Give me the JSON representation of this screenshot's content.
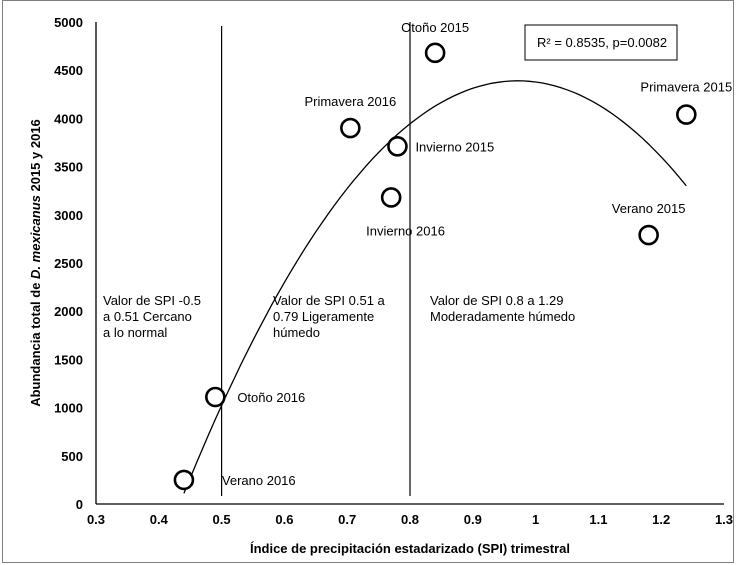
{
  "chart_data": {
    "type": "scatter",
    "xlabel": "Índice de precipitación estadarizado (SPI) trimestral",
    "ylabel_parts": [
      "Abundancia total de ",
      "D. mexicanus",
      " 2015 y 2016"
    ],
    "xlim": [
      0.3,
      1.3
    ],
    "ylim": [
      0,
      5000
    ],
    "xticks": [
      "0.3",
      "0.4",
      "0.5",
      "0.6",
      "0.7",
      "0.8",
      "0.9",
      "1",
      "1.1",
      "1.2",
      "1.3"
    ],
    "yticks": [
      "0",
      "500",
      "1000",
      "1500",
      "2000",
      "2500",
      "3000",
      "3500",
      "4000",
      "4500",
      "5000"
    ],
    "grid": false,
    "points": [
      {
        "label": "Verano 2016",
        "x": 0.44,
        "y": 250
      },
      {
        "label": "Otoño 2016",
        "x": 0.49,
        "y": 1110
      },
      {
        "label": "Primavera 2016",
        "x": 0.705,
        "y": 3900
      },
      {
        "label": "Invierno 2016",
        "x": 0.77,
        "y": 3180
      },
      {
        "label": "Invierno 2015",
        "x": 0.78,
        "y": 3710
      },
      {
        "label": "Otoño 2015",
        "x": 0.84,
        "y": 4680
      },
      {
        "label": "Verano 2015",
        "x": 1.18,
        "y": 2790
      },
      {
        "label": "Primavera 2015",
        "x": 1.24,
        "y": 4040
      }
    ],
    "trend": {
      "type": "quadratic",
      "x_range": [
        0.44,
        1.24
      ],
      "curve_x": [
        0.44,
        0.97,
        1.24
      ],
      "curve_y": [
        110,
        4390,
        3300
      ]
    },
    "vlines": [
      0.5,
      0.8
    ],
    "annotation": "R² = 0.8535, p=0.0082",
    "zones": [
      {
        "lines": [
          "Valor de SPI -0.5",
          "a 0.51 Cercano",
          "a lo normal"
        ]
      },
      {
        "lines": [
          "Valor de SPI 0.51 a",
          "0.79 Ligeramente",
          "húmedo"
        ]
      },
      {
        "lines": [
          "Valor de SPI 0.8 a 1.29",
          "Moderadamente húmedo"
        ]
      }
    ]
  }
}
